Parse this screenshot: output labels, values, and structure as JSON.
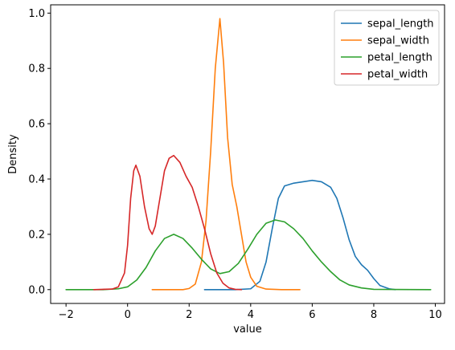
{
  "chart_data": {
    "type": "line",
    "title": "",
    "xlabel": "value",
    "ylabel": "Density",
    "xlim": [
      -2.5,
      10.3
    ],
    "ylim": [
      -0.05,
      1.03
    ],
    "xticks": [
      -2,
      0,
      2,
      4,
      6,
      8,
      10
    ],
    "yticks": [
      0.0,
      0.2,
      0.4,
      0.6,
      0.8,
      1.0
    ],
    "xtick_labels": [
      "−2",
      "0",
      "2",
      "4",
      "6",
      "8",
      "10"
    ],
    "ytick_labels": [
      "0.0",
      "0.2",
      "0.4",
      "0.6",
      "0.8",
      "1.0"
    ],
    "grid": false,
    "legend_position": "top-right",
    "series": [
      {
        "name": "sepal_length",
        "color": "#1f77b4",
        "points": [
          [
            2.5,
            0.0
          ],
          [
            3.5,
            0.0
          ],
          [
            4.0,
            0.003
          ],
          [
            4.3,
            0.03
          ],
          [
            4.5,
            0.1
          ],
          [
            4.7,
            0.22
          ],
          [
            4.9,
            0.33
          ],
          [
            5.1,
            0.375
          ],
          [
            5.4,
            0.385
          ],
          [
            5.7,
            0.39
          ],
          [
            6.0,
            0.395
          ],
          [
            6.3,
            0.39
          ],
          [
            6.6,
            0.37
          ],
          [
            6.8,
            0.33
          ],
          [
            7.0,
            0.26
          ],
          [
            7.2,
            0.18
          ],
          [
            7.4,
            0.12
          ],
          [
            7.6,
            0.09
          ],
          [
            7.8,
            0.07
          ],
          [
            8.0,
            0.04
          ],
          [
            8.2,
            0.015
          ],
          [
            8.5,
            0.003
          ],
          [
            8.7,
            0.0
          ]
        ]
      },
      {
        "name": "sepal_width",
        "color": "#ff7f0e",
        "points": [
          [
            0.8,
            0.0
          ],
          [
            1.8,
            0.0
          ],
          [
            2.0,
            0.004
          ],
          [
            2.2,
            0.02
          ],
          [
            2.4,
            0.1
          ],
          [
            2.55,
            0.25
          ],
          [
            2.7,
            0.5
          ],
          [
            2.85,
            0.8
          ],
          [
            3.0,
            0.98
          ],
          [
            3.12,
            0.82
          ],
          [
            3.25,
            0.55
          ],
          [
            3.4,
            0.38
          ],
          [
            3.55,
            0.3
          ],
          [
            3.7,
            0.2
          ],
          [
            3.85,
            0.1
          ],
          [
            4.0,
            0.045
          ],
          [
            4.2,
            0.012
          ],
          [
            4.5,
            0.002
          ],
          [
            5.0,
            0.0
          ],
          [
            5.6,
            0.0
          ]
        ]
      },
      {
        "name": "petal_length",
        "color": "#2ca02c",
        "points": [
          [
            -2.0,
            0.0
          ],
          [
            -0.8,
            0.0
          ],
          [
            -0.3,
            0.003
          ],
          [
            0.0,
            0.01
          ],
          [
            0.3,
            0.035
          ],
          [
            0.6,
            0.08
          ],
          [
            0.9,
            0.14
          ],
          [
            1.2,
            0.185
          ],
          [
            1.5,
            0.2
          ],
          [
            1.8,
            0.185
          ],
          [
            2.1,
            0.15
          ],
          [
            2.4,
            0.11
          ],
          [
            2.7,
            0.075
          ],
          [
            3.0,
            0.058
          ],
          [
            3.3,
            0.065
          ],
          [
            3.6,
            0.095
          ],
          [
            3.9,
            0.145
          ],
          [
            4.2,
            0.2
          ],
          [
            4.5,
            0.24
          ],
          [
            4.8,
            0.252
          ],
          [
            5.1,
            0.245
          ],
          [
            5.4,
            0.22
          ],
          [
            5.7,
            0.185
          ],
          [
            6.0,
            0.14
          ],
          [
            6.3,
            0.1
          ],
          [
            6.6,
            0.065
          ],
          [
            6.9,
            0.035
          ],
          [
            7.2,
            0.017
          ],
          [
            7.6,
            0.006
          ],
          [
            8.0,
            0.001
          ],
          [
            9.85,
            0.0
          ]
        ]
      },
      {
        "name": "petal_width",
        "color": "#d62728",
        "points": [
          [
            -1.1,
            0.0
          ],
          [
            -0.5,
            0.002
          ],
          [
            -0.3,
            0.01
          ],
          [
            -0.1,
            0.06
          ],
          [
            0.0,
            0.16
          ],
          [
            0.1,
            0.33
          ],
          [
            0.2,
            0.43
          ],
          [
            0.27,
            0.45
          ],
          [
            0.4,
            0.41
          ],
          [
            0.55,
            0.3
          ],
          [
            0.7,
            0.22
          ],
          [
            0.8,
            0.2
          ],
          [
            0.9,
            0.23
          ],
          [
            1.05,
            0.33
          ],
          [
            1.2,
            0.43
          ],
          [
            1.35,
            0.475
          ],
          [
            1.5,
            0.485
          ],
          [
            1.7,
            0.46
          ],
          [
            1.9,
            0.41
          ],
          [
            2.1,
            0.37
          ],
          [
            2.3,
            0.3
          ],
          [
            2.5,
            0.22
          ],
          [
            2.7,
            0.13
          ],
          [
            2.9,
            0.06
          ],
          [
            3.1,
            0.023
          ],
          [
            3.3,
            0.006
          ],
          [
            3.5,
            0.001
          ],
          [
            3.7,
            0.0
          ]
        ]
      }
    ]
  }
}
